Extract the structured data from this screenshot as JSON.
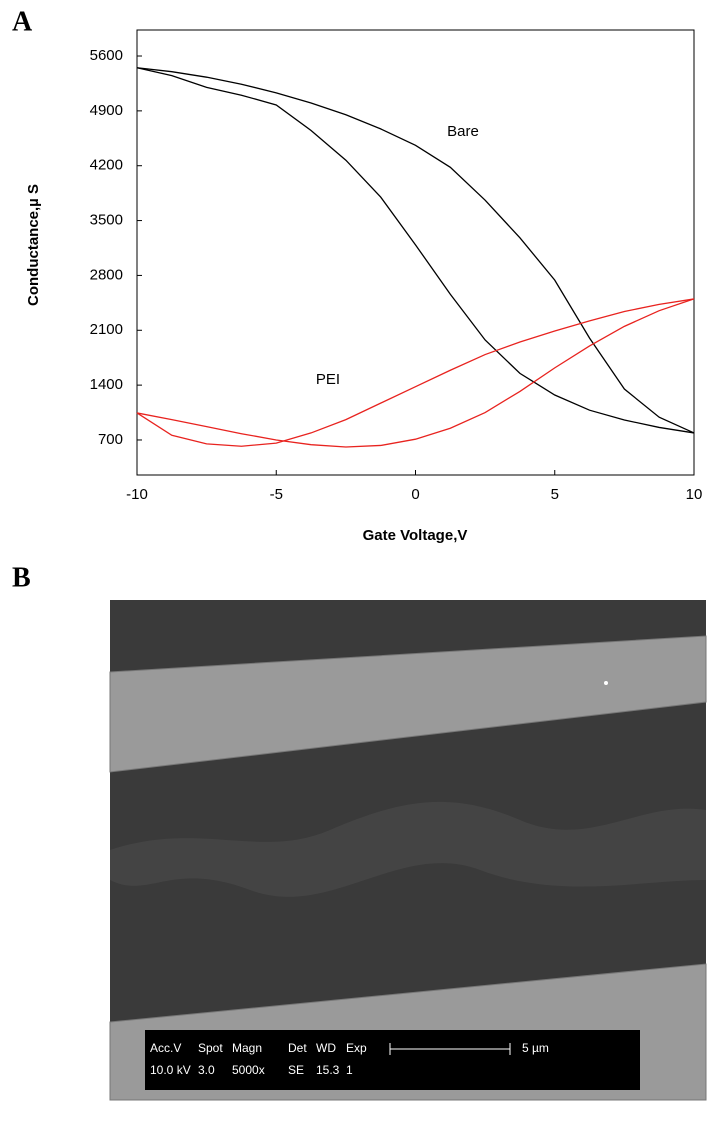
{
  "panel_labels": [
    "A",
    "B"
  ],
  "chart_data": {
    "type": "line",
    "x_label": "Gate Voltage,V",
    "y_label": "Conductance,µ S",
    "annotations": [
      "Bare",
      "PEI"
    ],
    "x": [
      -10,
      -8.75,
      -7.5,
      -6.25,
      -5,
      -3.75,
      -2.5,
      -1.25,
      0,
      1.25,
      2.5,
      3.75,
      5,
      6.25,
      7.5,
      8.75,
      10
    ],
    "series": [
      {
        "color": "#000000",
        "values": [
          5450,
          5400,
          5330,
          5240,
          5130,
          5000,
          4850,
          4670,
          4460,
          4180,
          3760,
          3280,
          2740,
          2000,
          1350,
          990,
          790
        ]
      },
      {
        "color": "#000000",
        "values": [
          5450,
          5350,
          5200,
          5100,
          4975,
          4650,
          4270,
          3800,
          3190,
          2560,
          1976,
          1550,
          1274,
          1080,
          955,
          860,
          790
        ]
      },
      {
        "color": "#e8231f",
        "values": [
          1045,
          760,
          650,
          620,
          660,
          790,
          960,
          1170,
          1380,
          1590,
          1790,
          1950,
          2090,
          2220,
          2340,
          2430,
          2500
        ]
      },
      {
        "color": "#e8231f",
        "values": [
          1045,
          960,
          870,
          780,
          700,
          640,
          610,
          630,
          710,
          850,
          1050,
          1320,
          1620,
          1900,
          2150,
          2350,
          2500
        ]
      }
    ],
    "xlim": [
      -10,
      10
    ],
    "xticks": [
      -10,
      -5,
      0,
      5,
      10
    ],
    "ylim": [
      253,
      5932
    ],
    "yticks": [
      700,
      1400,
      2100,
      2800,
      3500,
      4200,
      4900,
      5600
    ],
    "grid": false
  },
  "sem_info": {
    "headers": [
      "Acc.V",
      "Spot",
      "Magn",
      "Det",
      "WD",
      "Exp"
    ],
    "values": [
      "10.0 kV",
      "3.0",
      "5000x",
      "SE",
      "15.3",
      "1"
    ],
    "scale": "5 µm"
  }
}
